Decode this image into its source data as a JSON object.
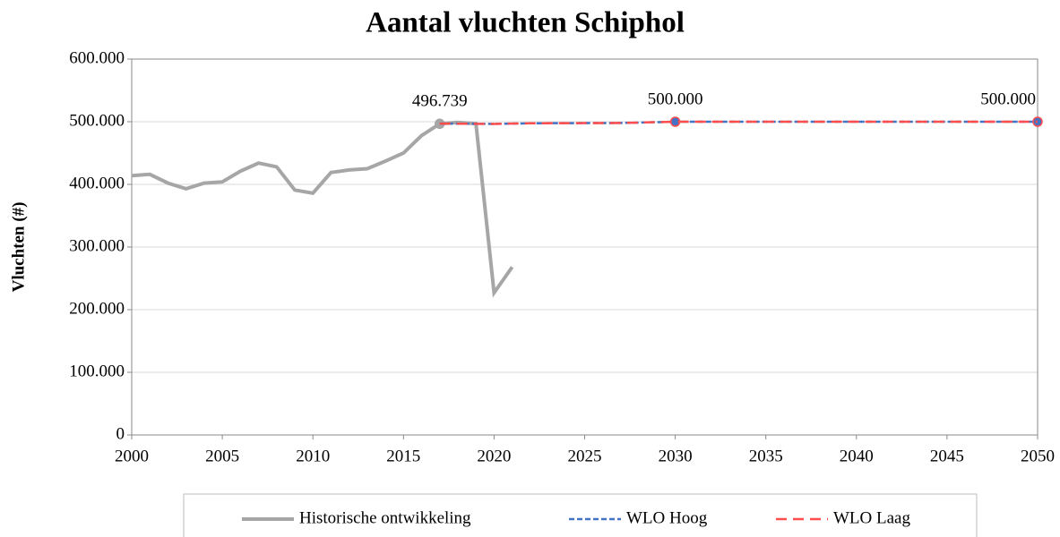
{
  "chart_data": {
    "type": "line",
    "title": "Aantal vluchten Schiphol",
    "y_label": "Vluchten (#)",
    "xlim": [
      2000,
      2050
    ],
    "xticks": [
      2000,
      2005,
      2010,
      2015,
      2020,
      2025,
      2030,
      2035,
      2040,
      2045,
      2050
    ],
    "ylim": [
      0,
      600000
    ],
    "yticks": [
      0,
      {
        "value": 100000,
        "label": "100.000"
      },
      {
        "value": 200000,
        "label": "200.000"
      },
      {
        "value": 300000,
        "label": "300.000"
      },
      {
        "value": 400000,
        "label": "400.000"
      },
      {
        "value": 500000,
        "label": "500.000"
      },
      {
        "value": 600000,
        "label": "600.000"
      }
    ],
    "grid": true,
    "legend": "bottom",
    "series": [
      {
        "name": "Historische ontwikkeling",
        "color": "#a6a6a6",
        "dash": "solid",
        "x": [
          2000,
          2001,
          2002,
          2003,
          2004,
          2005,
          2006,
          2007,
          2008,
          2009,
          2010,
          2011,
          2012,
          2013,
          2014,
          2015,
          2016,
          2017,
          2018,
          2019,
          2020,
          2021
        ],
        "values": [
          414000,
          416000,
          402000,
          393000,
          402000,
          404000,
          421000,
          434000,
          428000,
          391000,
          386000,
          419000,
          423000,
          425000,
          437000,
          450000,
          478000,
          496739,
          499000,
          497000,
          227000,
          268000
        ],
        "value_labels": [
          null,
          null,
          null,
          null,
          null,
          null,
          null,
          null,
          null,
          null,
          null,
          null,
          null,
          null,
          null,
          null,
          null,
          "496.739",
          null,
          null,
          null,
          null
        ]
      },
      {
        "name": "WLO Hoog",
        "color": "#4472c4",
        "dash": "short",
        "x": [
          2017,
          2020,
          2022,
          2027,
          2030,
          2050
        ],
        "values": [
          497000,
          496500,
          497500,
          498000,
          500000,
          500000
        ],
        "value_labels": [
          null,
          null,
          null,
          null,
          "500.000",
          "500.000"
        ]
      },
      {
        "name": "WLO Laag",
        "color": "#ff4d4d",
        "dash": "long",
        "x": [
          2017,
          2020,
          2022,
          2027,
          2030,
          2050
        ],
        "values": [
          497000,
          496500,
          497500,
          498000,
          500000,
          500000
        ]
      }
    ]
  }
}
